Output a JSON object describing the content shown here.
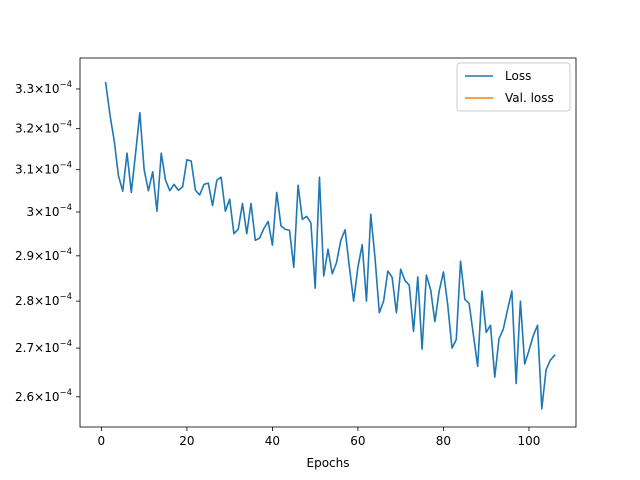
{
  "chart_data": {
    "type": "line",
    "title": "",
    "xlabel": "Epochs",
    "ylabel": "",
    "xlim": [
      -5,
      111
    ],
    "ylim": [
      0.000254,
      0.000338
    ],
    "yscale": "log",
    "grid": false,
    "legend_position": "top-right",
    "x_ticks": [
      {
        "value": 0,
        "label": "0"
      },
      {
        "value": 20,
        "label": "20"
      },
      {
        "value": 40,
        "label": "40"
      },
      {
        "value": 60,
        "label": "60"
      },
      {
        "value": 80,
        "label": "80"
      },
      {
        "value": 100,
        "label": "100"
      }
    ],
    "y_ticks": [
      {
        "value": 0.00026,
        "mantissa": "2.6",
        "exp": "−4"
      },
      {
        "value": 0.00027,
        "mantissa": "2.7",
        "exp": "−4"
      },
      {
        "value": 0.00028,
        "mantissa": "2.8",
        "exp": "−4"
      },
      {
        "value": 0.00029,
        "mantissa": "2.9",
        "exp": "−4"
      },
      {
        "value": 0.0003,
        "mantissa": "3",
        "exp": "−4"
      },
      {
        "value": 0.00031,
        "mantissa": "3.1",
        "exp": "−4"
      },
      {
        "value": 0.00032,
        "mantissa": "3.2",
        "exp": "−4"
      },
      {
        "value": 0.00033,
        "mantissa": "3.3",
        "exp": "−4"
      }
    ],
    "series": [
      {
        "name": "Loss",
        "color": "#1f77b4",
        "x": [
          1,
          2,
          3,
          4,
          5,
          6,
          7,
          8,
          9,
          10,
          11,
          12,
          13,
          14,
          15,
          16,
          17,
          18,
          19,
          20,
          21,
          22,
          23,
          24,
          25,
          26,
          27,
          28,
          29,
          30,
          31,
          32,
          33,
          34,
          35,
          36,
          37,
          38,
          39,
          40,
          41,
          42,
          43,
          44,
          45,
          46,
          47,
          48,
          49,
          50,
          51,
          52,
          53,
          54,
          55,
          56,
          57,
          58,
          59,
          60,
          61,
          62,
          63,
          64,
          65,
          66,
          67,
          68,
          69,
          70,
          71,
          72,
          73,
          74,
          75,
          76,
          77,
          78,
          79,
          80,
          81,
          82,
          83,
          84,
          85,
          86,
          87,
          88,
          89,
          90,
          91,
          92,
          93,
          94,
          95,
          96,
          97,
          98,
          99,
          100,
          101,
          102,
          103,
          104,
          105,
          106
        ],
        "values": [
          0.0003316,
          0.0003235,
          0.000317,
          0.0003085,
          0.0003049,
          0.000314,
          0.0003046,
          0.000314,
          0.000324,
          0.00031,
          0.000305,
          0.0003095,
          0.0003002,
          0.000314,
          0.0003075,
          0.000305,
          0.0003065,
          0.0003051,
          0.0003059,
          0.0003124,
          0.0003121,
          0.0003051,
          0.000304,
          0.0003065,
          0.0003068,
          0.0003015,
          0.0003075,
          0.0003082,
          0.0003002,
          0.000303,
          0.000295,
          0.000296,
          0.000302,
          0.000295,
          0.000302,
          0.0002935,
          0.000294,
          0.0002962,
          0.0002978,
          0.0002924,
          0.0003046,
          0.0002968,
          0.000296,
          0.0002958,
          0.0002874,
          0.0003063,
          0.0002983,
          0.000299,
          0.0002975,
          0.0002828,
          0.0003082,
          0.0002855,
          0.0002915,
          0.000286,
          0.0002885,
          0.0002935,
          0.0002959,
          0.0002875,
          0.00028,
          0.0002875,
          0.0002925,
          0.00028,
          0.0002995,
          0.0002895,
          0.0002775,
          0.00028,
          0.0002866,
          0.0002852,
          0.0002775,
          0.000287,
          0.0002845,
          0.0002835,
          0.0002735,
          0.0002853,
          0.0002698,
          0.0002857,
          0.0002825,
          0.0002756,
          0.0002822,
          0.0002864,
          0.0002792,
          0.00027,
          0.0002718,
          0.0002888,
          0.0002804,
          0.0002795,
          0.0002728,
          0.0002662,
          0.0002822,
          0.0002733,
          0.0002748,
          0.000264,
          0.000272,
          0.000274,
          0.0002782,
          0.0002822,
          0.0002627,
          0.00028,
          0.0002667,
          0.0002695,
          0.0002726,
          0.0002748,
          0.0002576,
          0.0002655,
          0.0002675,
          0.0002685
        ]
      },
      {
        "name": "Val. loss",
        "color": "#ff7f0e",
        "x": [],
        "values": []
      }
    ]
  }
}
